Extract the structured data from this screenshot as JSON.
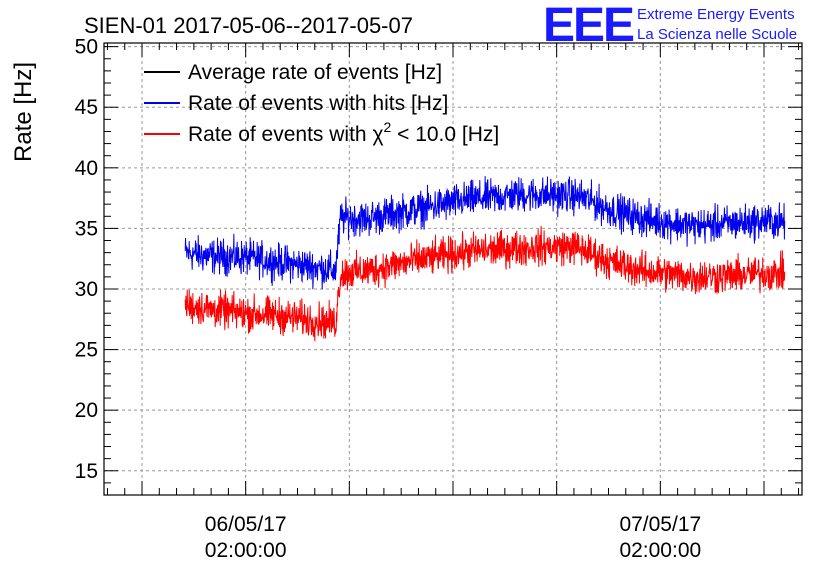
{
  "title": "SIEN-01 2017-05-06--2017-05-07",
  "logo": {
    "mark": "EEE",
    "line1": "Extreme Energy Events",
    "line2": "La Scienza nelle Scuole",
    "color": "#1a1aff"
  },
  "chart_data": {
    "type": "line",
    "ylabel": "Rate [Hz]",
    "ylim": [
      13,
      50.3
    ],
    "yticks": [
      15,
      20,
      25,
      30,
      35,
      40,
      45,
      50
    ],
    "grid": true,
    "legend_position": "top-left",
    "x_hours_range": [
      -8.2,
      32.2
    ],
    "x_ticks": [
      {
        "hour": 0,
        "date": "06/05/17",
        "time": "02:00:00"
      },
      {
        "hour": 24,
        "date": "07/05/17",
        "time": "02:00:00"
      }
    ],
    "legend": [
      {
        "name": "Average rate of events [Hz]",
        "color": "#000000"
      },
      {
        "name": "Rate of events with hits [Hz]",
        "color": "#0000ee"
      },
      {
        "name_prefix": "Rate of events with ",
        "name_symbol": "χ",
        "name_sup": "2",
        "name_suffix": " < 10.0 [Hz]",
        "color": "#ff0000"
      }
    ],
    "series": [
      {
        "name": "Rate of events with hits [Hz]",
        "color": "#0000ee",
        "noise": 1.1,
        "x": [
          -3.5,
          -2,
          0,
          2,
          4,
          5.2,
          5.5,
          7,
          10,
          13,
          16,
          19,
          19.6,
          21,
          23,
          26,
          28,
          30,
          31.2
        ],
        "y": [
          33.0,
          32.7,
          32.6,
          32.2,
          31.8,
          31.5,
          35.9,
          35.8,
          36.6,
          37.4,
          37.8,
          37.7,
          37.5,
          36.6,
          35.8,
          35.2,
          35.4,
          35.6,
          35.5
        ]
      },
      {
        "name": "Rate of events with χ2 < 10.0 [Hz]",
        "color": "#ff0000",
        "noise": 1.1,
        "x": [
          -3.5,
          -2,
          0,
          2,
          4,
          5.2,
          5.5,
          7,
          10,
          13,
          16,
          19,
          19.6,
          21,
          23,
          26,
          28,
          30,
          31.2
        ],
        "y": [
          28.7,
          28.3,
          28.0,
          27.8,
          27.4,
          27.2,
          31.3,
          31.5,
          32.4,
          33.1,
          33.4,
          33.5,
          33.2,
          32.3,
          31.5,
          31.0,
          31.1,
          31.3,
          31.3
        ]
      }
    ]
  }
}
